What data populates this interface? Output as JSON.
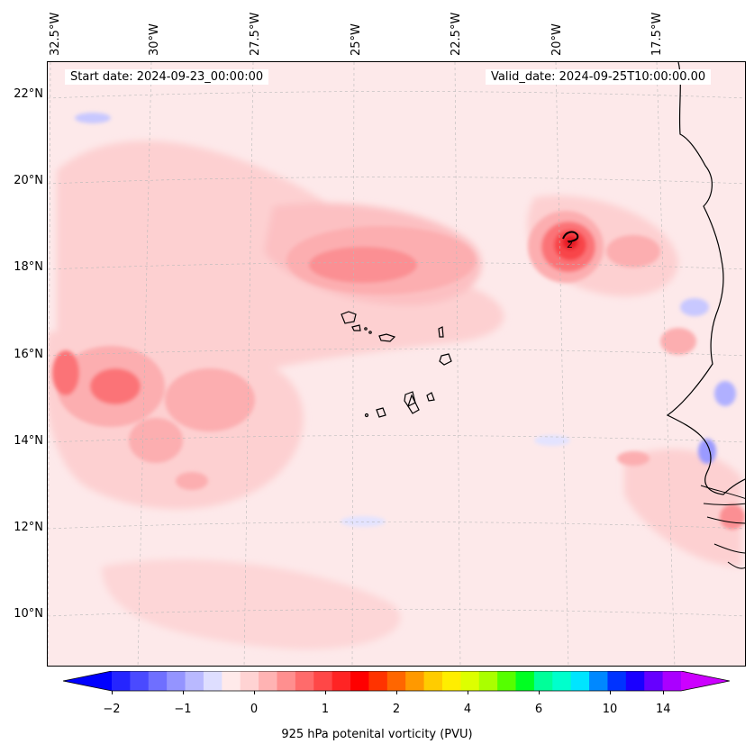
{
  "map": {
    "start_date": "Start date: 2024-09-23_00:00:00",
    "valid_date": "Valid_date: 2024-09-25T10:00:00.00",
    "lon_labels": [
      "32.5°W",
      "30°W",
      "27.5°W",
      "25°W",
      "22.5°W",
      "20°W",
      "17.5°W"
    ],
    "lat_labels": [
      "22°N",
      "20°N",
      "18°N",
      "16°N",
      "14°N",
      "12°N",
      "10°N"
    ],
    "max_label": "2"
  },
  "colorbar": {
    "ticks": [
      "−2",
      "−1",
      "0",
      "1",
      "2",
      "4",
      "6",
      "10",
      "14"
    ],
    "label": "925 hPa potenital vorticity (PVU)",
    "colors": [
      "#0000ff",
      "#2525ff",
      "#4a4aff",
      "#6f6fff",
      "#9494ff",
      "#b9b9ff",
      "#dedeff",
      "#ffeaea",
      "#ffd3d3",
      "#ffb3b3",
      "#ff8f8f",
      "#ff6b6b",
      "#ff4747",
      "#ff2424",
      "#ff0000",
      "#ff3300",
      "#ff6600",
      "#ff9900",
      "#ffcc00",
      "#ffee00",
      "#ddff00",
      "#aaff00",
      "#55ff00",
      "#00ff22",
      "#00ff99",
      "#00ffcc",
      "#00e5ff",
      "#0088ff",
      "#0033ff",
      "#1a00ff",
      "#6600ff",
      "#aa00ff",
      "#cc00ff"
    ]
  }
}
